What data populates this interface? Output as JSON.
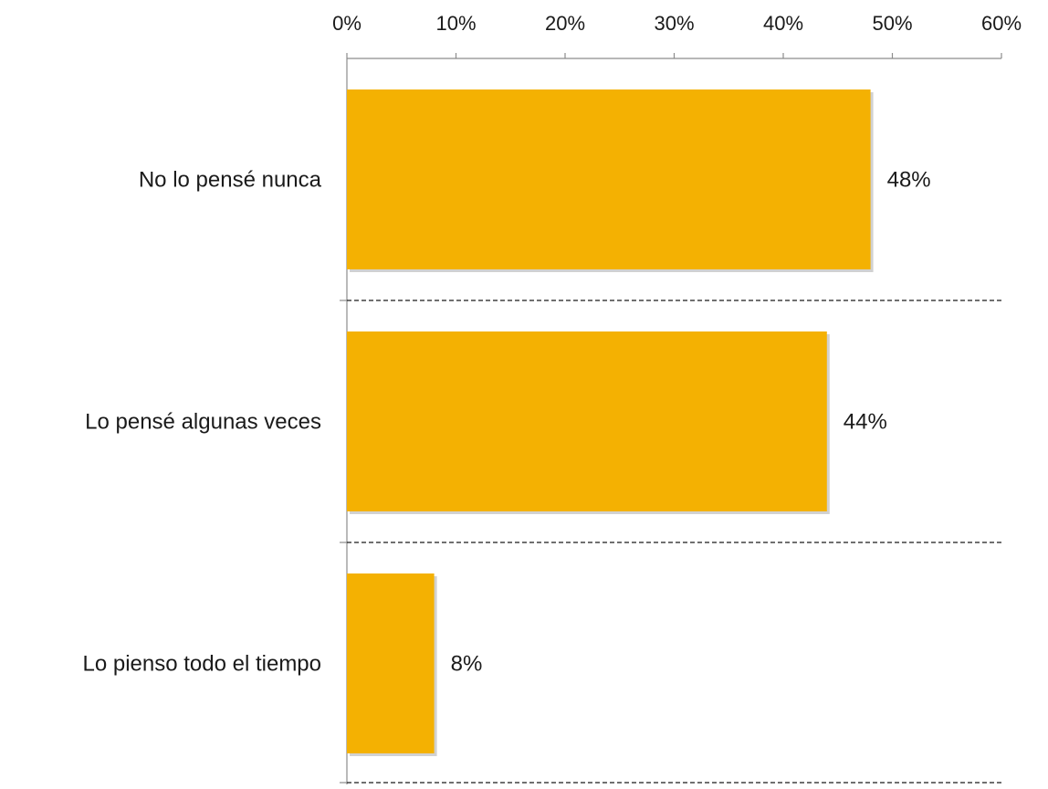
{
  "chart_data": {
    "type": "bar",
    "orientation": "horizontal",
    "categories": [
      "No lo pensé nunca",
      "Lo pensé algunas veces",
      "Lo pienso todo el tiempo"
    ],
    "values": [
      48,
      44,
      8
    ],
    "data_labels": [
      "48%",
      "44%",
      "8%"
    ],
    "xlim": [
      0,
      60
    ],
    "x_ticks": [
      0,
      10,
      20,
      30,
      40,
      50,
      60
    ],
    "x_tick_labels": [
      "0%",
      "10%",
      "20%",
      "30%",
      "40%",
      "50%",
      "60%"
    ],
    "axis_position": "top",
    "grid": "dashed horizontal separators between categories",
    "legend": "none",
    "colors": {
      "bar": "#F4B102",
      "axis": "#8c8c8c",
      "separator": "#1a1a1a"
    }
  }
}
